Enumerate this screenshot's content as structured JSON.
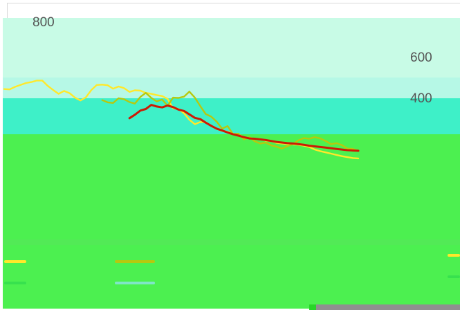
{
  "chart_data": {
    "type": "line",
    "title": "",
    "xlabel": "",
    "ylabel": "",
    "ylim": [
      0,
      800
    ],
    "yticks": [
      "800",
      "600",
      "400"
    ],
    "x": [
      1,
      2,
      3,
      4,
      5,
      6,
      7,
      8,
      9,
      10,
      11,
      12,
      13,
      14,
      15,
      16,
      17,
      18,
      19,
      20,
      21,
      22,
      23,
      24,
      25,
      26,
      27,
      28,
      29,
      30,
      31,
      32,
      33,
      34,
      35,
      36,
      37,
      38,
      39,
      40,
      41,
      42,
      43,
      44,
      45,
      46,
      47,
      48,
      49,
      50,
      51,
      52,
      53,
      54,
      55,
      56,
      57,
      58,
      59,
      60,
      61,
      62,
      63,
      64,
      65,
      66
    ],
    "series": [
      {
        "name": "",
        "color": "#ffe82a",
        "values": [
          593,
          592,
          600,
          606,
          612,
          615,
          620,
          620,
          603,
          590,
          578,
          587,
          580,
          566,
          557,
          567,
          590,
          606,
          607,
          605,
          594,
          601,
          596,
          584,
          589,
          588,
          581,
          578,
          574,
          571,
          562,
          532,
          530,
          517,
          496,
          482,
          489,
          488,
          477,
          467,
          461,
          458,
          452,
          449,
          441,
          438,
          436,
          435,
          430,
          429,
          423,
          421,
          419,
          418,
          417,
          414,
          410,
          402,
          397,
          393,
          389,
          385,
          381,
          378,
          375,
          374
        ]
      },
      {
        "name": "",
        "color": "#b6c90f",
        "values": [
          null,
          null,
          null,
          null,
          null,
          null,
          null,
          null,
          null,
          null,
          null,
          null,
          null,
          null,
          null,
          null,
          null,
          null,
          558,
          551,
          549,
          564,
          561,
          552,
          547,
          568,
          581,
          565,
          554,
          560,
          540,
          566,
          565,
          569,
          585,
          566,
          539,
          514,
          506,
          490,
          468,
          476,
          451,
          452,
          434,
          441,
          428,
          421,
          424,
          415,
          411,
          405,
          413,
          419,
          431,
          438,
          436,
          441,
          437,
          429,
          419,
          422,
          416,
          405,
          404,
          398
        ]
      },
      {
        "name": "",
        "color": "#cc1a05",
        "values": [
          null,
          null,
          null,
          null,
          null,
          null,
          null,
          null,
          null,
          null,
          null,
          null,
          null,
          null,
          null,
          null,
          null,
          null,
          null,
          null,
          null,
          null,
          null,
          501,
          512,
          525,
          530,
          543,
          538,
          535,
          541,
          536,
          528,
          524,
          513,
          502,
          498,
          487,
          477,
          468,
          462,
          456,
          450,
          446,
          441,
          437,
          436,
          434,
          432,
          429,
          426,
          424,
          422,
          421,
          419,
          417,
          414,
          412,
          410,
          408,
          406,
          404,
          402,
          400,
          399,
          398
        ]
      },
      {
        "name": "",
        "color": "#37e14e",
        "values": [
          null,
          null,
          null,
          null,
          null,
          null,
          null,
          null,
          null,
          null,
          null,
          null,
          null,
          null,
          null,
          null,
          null,
          null,
          null,
          null,
          null,
          null,
          null,
          null,
          null,
          null,
          null,
          null,
          null,
          null,
          null,
          null,
          null,
          null,
          null,
          null,
          null,
          null,
          null,
          null,
          null,
          null,
          null,
          null,
          null,
          null,
          null,
          null,
          null,
          null,
          null,
          null,
          null,
          null,
          null,
          null,
          null,
          null,
          null,
          null,
          null,
          null,
          null,
          null,
          null,
          null
        ]
      },
      {
        "name": "",
        "color": "#7fe6c8",
        "values": [
          null,
          null,
          null,
          null,
          null,
          null,
          null,
          null,
          null,
          null,
          null,
          null,
          null,
          null,
          null,
          null,
          null,
          null,
          null,
          null,
          null,
          null,
          null,
          null,
          null,
          null,
          null,
          null,
          null,
          null,
          null,
          null,
          null,
          null,
          null,
          null,
          null,
          null,
          null,
          null,
          null,
          null,
          null,
          null,
          null,
          null,
          null,
          null,
          null,
          null,
          null,
          null,
          null,
          null,
          null,
          null,
          null,
          null,
          null,
          null,
          null,
          null,
          null,
          null,
          null,
          null
        ]
      }
    ],
    "legend": {
      "placement": "bottom"
    }
  }
}
